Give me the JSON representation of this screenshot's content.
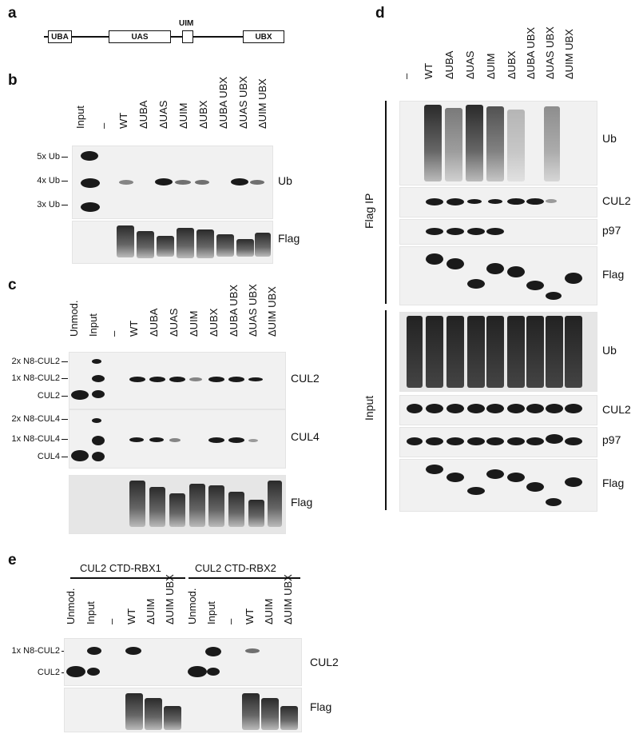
{
  "panels": {
    "a": {
      "label": "a",
      "domains": [
        "UBA",
        "UAS",
        "UIM",
        "UBX"
      ]
    },
    "b": {
      "label": "b",
      "lanes": [
        "Input",
        "–",
        "WT",
        "ΔUBA",
        "ΔUAS",
        "ΔUIM",
        "ΔUBX",
        "ΔUBA UBX",
        "ΔUAS UBX",
        "ΔUIM UBX"
      ],
      "markers": [
        "5x Ub",
        "4x Ub",
        "3x Ub"
      ],
      "blots": [
        "Ub",
        "Flag"
      ]
    },
    "c": {
      "label": "c",
      "lanes": [
        "Unmod.",
        "Input",
        "–",
        "WT",
        "ΔUBA",
        "ΔUAS",
        "ΔUIM",
        "ΔUBX",
        "ΔUBA UBX",
        "ΔUAS UBX",
        "ΔUIM UBX"
      ],
      "markers_cul2": [
        "2x N8-CUL2",
        "1x N8-CUL2",
        "CUL2"
      ],
      "markers_cul4": [
        "2x N8-CUL4",
        "1x N8-CUL4",
        "CUL4"
      ],
      "blots": [
        "CUL2",
        "CUL4",
        "Flag"
      ]
    },
    "d": {
      "label": "d",
      "lanes": [
        "–",
        "WT",
        "ΔUBA",
        "ΔUAS",
        "ΔUIM",
        "ΔUBX",
        "ΔUBA UBX",
        "ΔUAS UBX",
        "ΔUIM UBX"
      ],
      "groups": [
        "Flag IP",
        "Input"
      ],
      "blots_ip": [
        "Ub",
        "CUL2",
        "p97",
        "Flag"
      ],
      "blots_input": [
        "Ub",
        "CUL2",
        "p97",
        "Flag"
      ]
    },
    "e": {
      "label": "e",
      "groups": [
        "CUL2 CTD-RBX1",
        "CUL2 CTD-RBX2"
      ],
      "lanes": [
        "Unmod.",
        "Input",
        "–",
        "WT",
        "ΔUIM",
        "ΔUIM UBX",
        "Unmod.",
        "Input",
        "–",
        "WT",
        "ΔUIM",
        "ΔUIM UBX"
      ],
      "markers": [
        "1x N8-CUL2",
        "CUL2"
      ],
      "blots": [
        "CUL2",
        "Flag"
      ]
    }
  }
}
